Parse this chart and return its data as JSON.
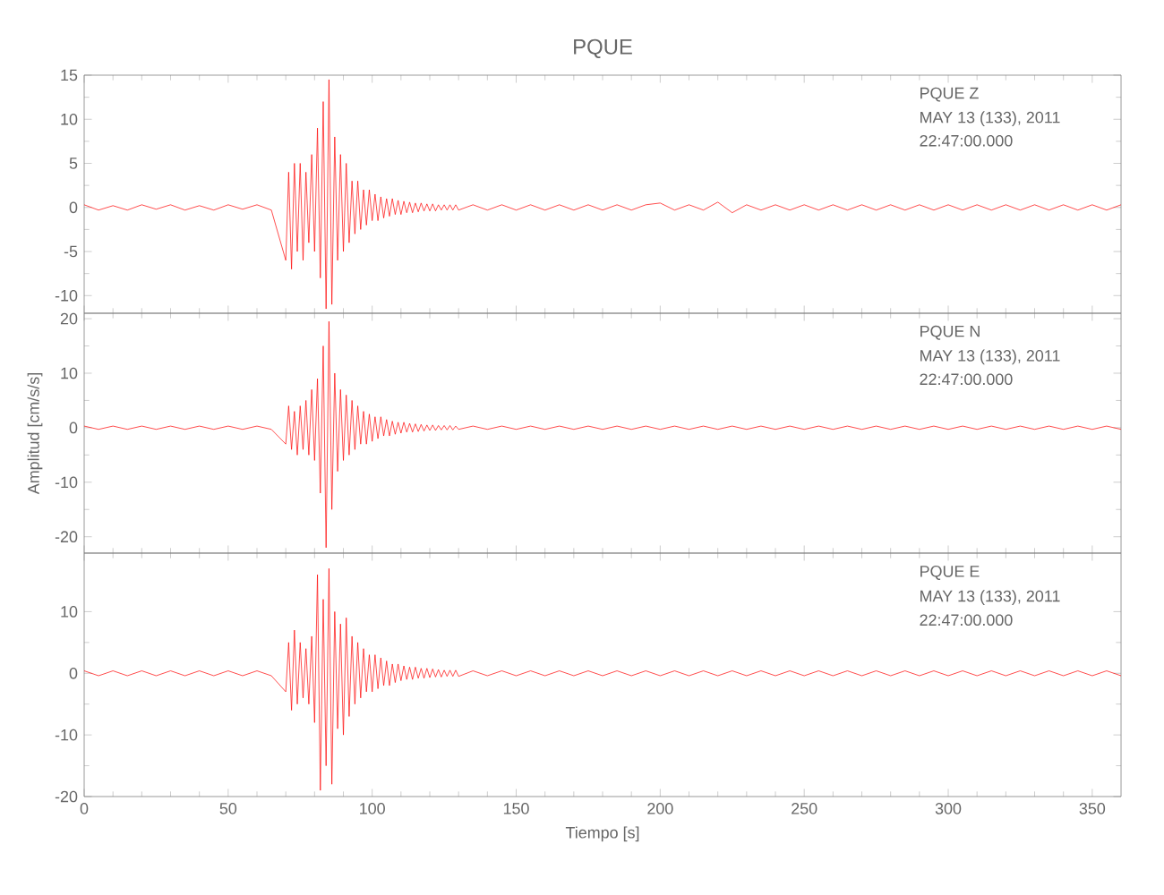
{
  "chart_data": [
    {
      "type": "line",
      "title": "PQUE",
      "annotations": [
        "PQUE   Z",
        "MAY 13 (133), 2011",
        "22:47:00.000"
      ],
      "color": "#ff0000",
      "xlim": [
        0,
        360
      ],
      "xticks": [
        0,
        50,
        100,
        150,
        200,
        250,
        300,
        350
      ],
      "ylim": [
        -12,
        15
      ],
      "yticks": [
        -10,
        -5,
        0,
        5,
        10,
        15
      ],
      "tick_labels": "y",
      "x": [
        0,
        5,
        10,
        15,
        20,
        25,
        30,
        35,
        40,
        45,
        50,
        55,
        60,
        65,
        70,
        71,
        72,
        73,
        74,
        75,
        76,
        77,
        78,
        79,
        80,
        81,
        82,
        83,
        84,
        85,
        86,
        87,
        88,
        89,
        90,
        91,
        92,
        93,
        94,
        95,
        96,
        97,
        98,
        99,
        100,
        101,
        102,
        103,
        104,
        105,
        106,
        107,
        108,
        109,
        110,
        111,
        112,
        113,
        114,
        115,
        116,
        117,
        118,
        119,
        120,
        121,
        122,
        123,
        124,
        125,
        126,
        127,
        128,
        129,
        130,
        135,
        140,
        145,
        150,
        155,
        160,
        165,
        170,
        175,
        180,
        185,
        190,
        195,
        200,
        205,
        210,
        215,
        220,
        225,
        230,
        235,
        240,
        245,
        250,
        255,
        260,
        265,
        270,
        275,
        280,
        285,
        290,
        295,
        300,
        305,
        310,
        315,
        320,
        325,
        330,
        335,
        340,
        345,
        350,
        355,
        360
      ],
      "values": [
        0.3,
        -0.3,
        0.2,
        -0.3,
        0.3,
        -0.2,
        0.3,
        -0.3,
        0.2,
        -0.3,
        0.3,
        -0.2,
        0.3,
        -0.3,
        -6,
        4,
        -7,
        5,
        -5,
        5,
        -6,
        4,
        -4,
        6,
        -5,
        9,
        -8,
        12,
        -11.5,
        14.5,
        -11,
        8,
        -6,
        6,
        -5,
        5,
        -4,
        3,
        -3,
        3,
        -2.5,
        2,
        -2,
        2,
        -1.5,
        1.5,
        -1.5,
        1.2,
        -1.2,
        1,
        -1,
        1,
        -0.8,
        0.8,
        -0.8,
        0.7,
        -0.6,
        0.6,
        -0.6,
        0.5,
        -0.5,
        0.5,
        -0.4,
        0.4,
        -0.4,
        0.4,
        -0.4,
        0.3,
        -0.3,
        0.3,
        -0.3,
        0.3,
        -0.3,
        0.3,
        -0.3,
        0.3,
        -0.3,
        0.3,
        -0.3,
        0.3,
        -0.3,
        0.3,
        -0.3,
        0.3,
        -0.3,
        0.3,
        -0.3,
        0.3,
        0.5,
        -0.3,
        0.3,
        -0.3,
        0.6,
        -0.6,
        0.3,
        -0.3,
        0.3,
        -0.3,
        0.3,
        -0.3,
        0.3,
        -0.3,
        0.3,
        -0.3,
        0.3,
        -0.3,
        0.3,
        -0.3,
        0.3,
        -0.3,
        0.3,
        -0.3,
        0.3,
        -0.3,
        0.3,
        -0.3,
        0.3,
        -0.3,
        0.3,
        -0.3,
        0.3
      ]
    },
    {
      "type": "line",
      "ylabel": "Amplitud  [cm/s/s]",
      "annotations": [
        "PQUE   N",
        "MAY 13 (133), 2011",
        "22:47:00.000"
      ],
      "color": "#ff0000",
      "xlim": [
        0,
        360
      ],
      "xticks": [
        0,
        50,
        100,
        150,
        200,
        250,
        300,
        350
      ],
      "ylim": [
        -23,
        21
      ],
      "yticks": [
        -20,
        -10,
        0,
        10,
        20
      ],
      "tick_labels": "y",
      "x": [
        0,
        5,
        10,
        15,
        20,
        25,
        30,
        35,
        40,
        45,
        50,
        55,
        60,
        65,
        70,
        71,
        72,
        73,
        74,
        75,
        76,
        77,
        78,
        79,
        80,
        81,
        82,
        83,
        84,
        85,
        86,
        87,
        88,
        89,
        90,
        91,
        92,
        93,
        94,
        95,
        96,
        97,
        98,
        99,
        100,
        101,
        102,
        103,
        104,
        105,
        106,
        107,
        108,
        109,
        110,
        111,
        112,
        113,
        114,
        115,
        116,
        117,
        118,
        119,
        120,
        121,
        122,
        123,
        124,
        125,
        126,
        127,
        128,
        129,
        130,
        135,
        140,
        145,
        150,
        155,
        160,
        165,
        170,
        175,
        180,
        185,
        190,
        195,
        200,
        205,
        210,
        215,
        220,
        225,
        230,
        235,
        240,
        245,
        250,
        255,
        260,
        265,
        270,
        275,
        280,
        285,
        290,
        295,
        300,
        305,
        310,
        315,
        320,
        325,
        330,
        335,
        340,
        345,
        350,
        355,
        360
      ],
      "values": [
        0.3,
        -0.3,
        0.3,
        -0.3,
        0.3,
        -0.3,
        0.3,
        -0.3,
        0.3,
        -0.3,
        0.3,
        -0.3,
        0.3,
        -0.3,
        -3,
        4,
        -4,
        3,
        -5,
        4,
        -4,
        5,
        -5,
        7,
        -6,
        9,
        -12,
        15,
        -22,
        19.5,
        -15,
        10,
        -8,
        7,
        -6,
        6,
        -5,
        5,
        -4,
        4,
        -3,
        3,
        -3,
        2.5,
        -2.5,
        2,
        -2,
        2,
        -1.5,
        1.5,
        -1.5,
        1.2,
        -1.2,
        1,
        -1,
        1,
        -0.8,
        0.8,
        -0.8,
        0.7,
        -0.7,
        0.6,
        -0.6,
        0.5,
        -0.5,
        0.5,
        -0.5,
        0.4,
        -0.4,
        0.4,
        -0.4,
        0.4,
        -0.4,
        0.3,
        -0.3,
        0.3,
        -0.3,
        0.3,
        -0.3,
        0.3,
        -0.3,
        0.3,
        -0.3,
        0.3,
        -0.3,
        0.3,
        -0.3,
        0.3,
        -0.3,
        0.3,
        -0.3,
        0.3,
        -0.3,
        0.3,
        -0.3,
        0.3,
        -0.3,
        0.3,
        -0.3,
        0.3,
        -0.3,
        0.3,
        -0.3,
        0.3,
        -0.3,
        0.3,
        -0.3,
        0.3,
        -0.3,
        0.3,
        -0.3,
        0.3,
        -0.3,
        0.3,
        -0.3,
        0.3,
        -0.3,
        0.3,
        -0.3,
        0.3,
        -0.3
      ]
    },
    {
      "type": "line",
      "xlabel": "Tiempo  [s]",
      "annotations": [
        "PQUE   E",
        "MAY 13 (133), 2011",
        "22:47:00.000"
      ],
      "color": "#ff0000",
      "xlim": [
        0,
        360
      ],
      "xticks": [
        0,
        50,
        100,
        150,
        200,
        250,
        300,
        350
      ],
      "ylim": [
        -20,
        19.5
      ],
      "yticks": [
        -20,
        -10,
        0,
        10
      ],
      "x": [
        0,
        5,
        10,
        15,
        20,
        25,
        30,
        35,
        40,
        45,
        50,
        55,
        60,
        65,
        70,
        71,
        72,
        73,
        74,
        75,
        76,
        77,
        78,
        79,
        80,
        81,
        82,
        83,
        84,
        85,
        86,
        87,
        88,
        89,
        90,
        91,
        92,
        93,
        94,
        95,
        96,
        97,
        98,
        99,
        100,
        101,
        102,
        103,
        104,
        105,
        106,
        107,
        108,
        109,
        110,
        111,
        112,
        113,
        114,
        115,
        116,
        117,
        118,
        119,
        120,
        121,
        122,
        123,
        124,
        125,
        126,
        127,
        128,
        129,
        130,
        135,
        140,
        145,
        150,
        155,
        160,
        165,
        170,
        175,
        180,
        185,
        190,
        195,
        200,
        205,
        210,
        215,
        220,
        225,
        230,
        235,
        240,
        245,
        250,
        255,
        260,
        265,
        270,
        275,
        280,
        285,
        290,
        295,
        300,
        305,
        310,
        315,
        320,
        325,
        330,
        335,
        340,
        345,
        350,
        355,
        360
      ],
      "values": [
        0.4,
        -0.4,
        0.4,
        -0.4,
        0.4,
        -0.4,
        0.4,
        -0.4,
        0.4,
        -0.4,
        0.4,
        -0.4,
        0.4,
        -0.4,
        -3,
        5,
        -6,
        7,
        -5,
        5,
        -4,
        4,
        -5,
        6,
        -8,
        16,
        -19,
        12,
        -15,
        17,
        -18,
        10,
        -9,
        8,
        -10,
        9,
        -7,
        6,
        -5,
        5,
        -4,
        4,
        -3,
        3,
        -3,
        3,
        -2.5,
        2.5,
        -2,
        2,
        -2,
        1.5,
        -1.5,
        1.5,
        -1.2,
        1.2,
        -1,
        1,
        -1,
        1,
        -0.8,
        0.8,
        -0.8,
        0.8,
        -0.7,
        0.7,
        -0.6,
        0.6,
        -0.6,
        0.5,
        -0.5,
        0.5,
        -0.5,
        0.5,
        -0.5,
        0.4,
        -0.4,
        0.4,
        -0.4,
        0.4,
        -0.4,
        0.4,
        -0.4,
        0.4,
        -0.4,
        0.4,
        -0.4,
        0.4,
        -0.4,
        0.4,
        -0.4,
        0.4,
        -0.4,
        0.4,
        -0.4,
        0.4,
        -0.4,
        0.4,
        -0.4,
        0.4,
        -0.4,
        0.4,
        -0.4,
        0.4,
        -0.4,
        0.4,
        -0.4,
        0.4,
        -0.4,
        0.4,
        -0.4,
        0.4,
        -0.4,
        0.4,
        -0.4,
        0.4,
        -0.4,
        0.4,
        -0.4,
        0.4,
        -0.4
      ]
    }
  ]
}
